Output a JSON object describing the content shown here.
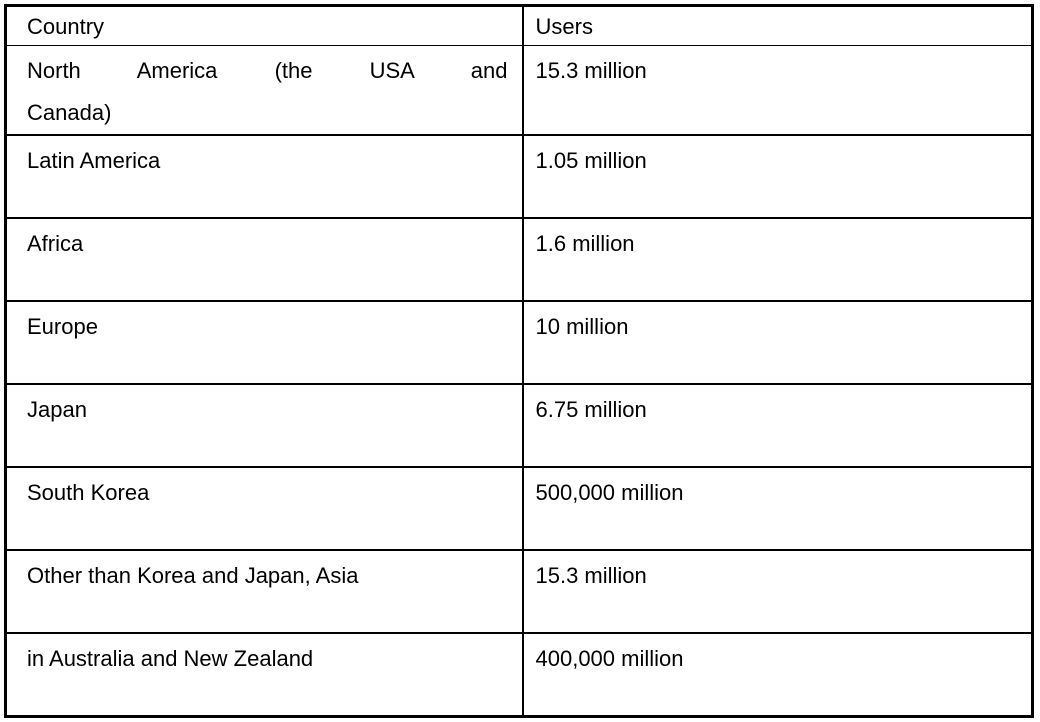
{
  "chart_data": {
    "type": "table",
    "title": "",
    "columns": [
      "Country",
      "Users"
    ],
    "rows": [
      [
        "North America (the USA and Canada)",
        "15.3 million"
      ],
      [
        "Latin America",
        "1.05 million"
      ],
      [
        "Africa",
        "1.6 million"
      ],
      [
        "Europe",
        "10 million"
      ],
      [
        "Japan",
        "6.75 million"
      ],
      [
        "South Korea",
        "500,000 million"
      ],
      [
        "Other than Korea and Japan, Asia",
        "15.3 million"
      ],
      [
        "in Australia and New Zealand",
        "400,000 million"
      ]
    ],
    "layout": {
      "grid": "full-borders",
      "header_row": true,
      "text_align": "left",
      "first_data_row_justified": true
    }
  },
  "colors": {
    "border": "#000000",
    "text": "#000000",
    "background": "#ffffff"
  }
}
